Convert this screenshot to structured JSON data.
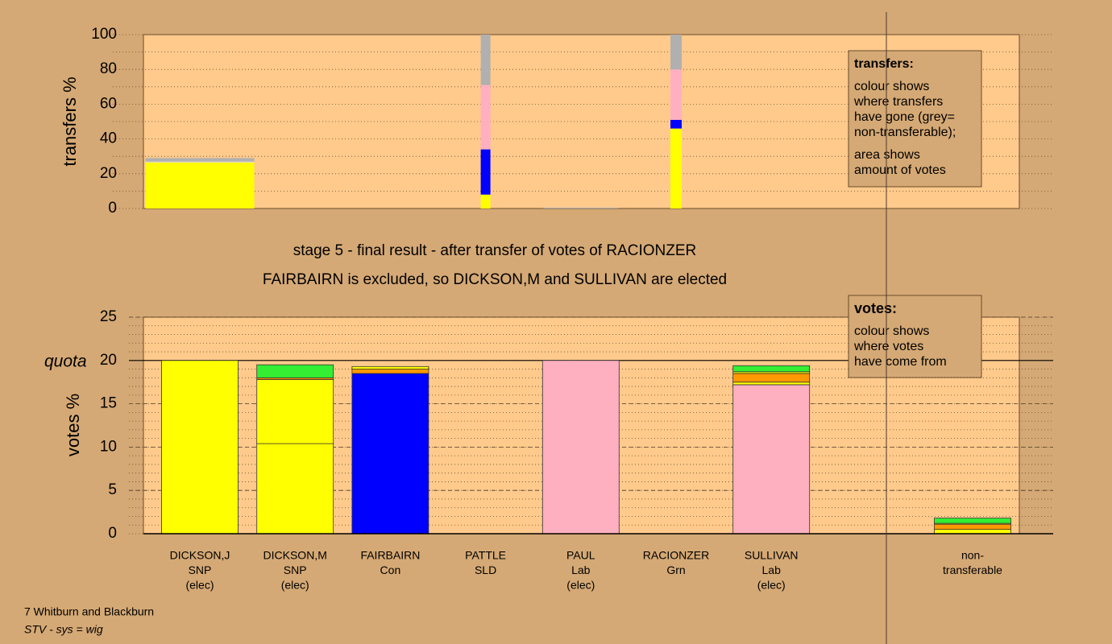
{
  "chart_data": [
    {
      "type": "bar",
      "stacked": true,
      "ylabel": "transfers %",
      "ylim": [
        0,
        100
      ],
      "yticks": [
        0,
        20,
        40,
        60,
        80,
        100
      ],
      "minor_yticks": [
        0,
        10,
        20,
        30,
        40,
        50,
        60,
        70,
        80,
        90,
        100
      ],
      "bars": [
        {
          "amount": 13.5,
          "segments": [
            {
              "value": 26.5,
              "color": "#ffff00"
            },
            {
              "value": 0.5,
              "color": "#d8d8f0"
            },
            {
              "value": 2,
              "color": "#b0b0b0"
            }
          ]
        },
        null,
        null,
        {
          "amount": 1.2,
          "segments": [
            {
              "value": 8,
              "color": "#ffff00"
            },
            {
              "value": 26,
              "color": "#0000ff"
            },
            {
              "value": 37,
              "color": "#ffb0c0"
            },
            {
              "value": 29,
              "color": "#b0b0b0"
            }
          ]
        },
        {
          "amount": 9.3,
          "segments": [
            {
              "value": 0.5,
              "color": "#b0b0b0"
            }
          ]
        },
        {
          "amount": 1.4,
          "segments": [
            {
              "value": 46,
              "color": "#ffff00"
            },
            {
              "value": 5,
              "color": "#0000ff"
            },
            {
              "value": 29,
              "color": "#ffb0c0"
            },
            {
              "value": 20,
              "color": "#b0b0b0"
            }
          ]
        },
        null,
        null
      ],
      "legend": {
        "title": "transfers:",
        "paragraphs": [
          [
            "colour shows",
            "where transfers",
            "have gone (grey=",
            "non-transferable);"
          ],
          [
            "area shows",
            "amount of votes"
          ]
        ]
      }
    },
    {
      "type": "bar",
      "stacked": true,
      "ylabel": "votes %",
      "ylim": [
        0,
        25
      ],
      "yticks": [
        0,
        5,
        10,
        15,
        20,
        25
      ],
      "minor_yticks": [
        0,
        1,
        2,
        3,
        4,
        5,
        6,
        7,
        8,
        9,
        10,
        11,
        12,
        13,
        14,
        15,
        16,
        17,
        18,
        19,
        20,
        21,
        22,
        23,
        24,
        25
      ],
      "quota": 20,
      "quota_label": "quota",
      "categories": [
        [
          "DICKSON,J",
          "SNP",
          "(elec)"
        ],
        [
          "DICKSON,M",
          "SNP",
          "(elec)"
        ],
        [
          "FAIRBAIRN",
          "Con"
        ],
        [
          "PATTLE",
          "SLD"
        ],
        [
          "PAUL",
          "Lab",
          "(elec)"
        ],
        [
          "RACIONZER",
          "Grn"
        ],
        [
          "SULLIVAN",
          "Lab",
          "(elec)"
        ],
        [
          "non-",
          "transferable"
        ]
      ],
      "bars": [
        {
          "segments": [
            {
              "value": 20,
              "color": "#ffff00"
            }
          ]
        },
        {
          "segments": [
            {
              "value": 10.4,
              "color": "#ffff00"
            },
            {
              "value": 7.4,
              "color": "#ffff00"
            },
            {
              "value": 0.2,
              "color": "#ff9900"
            },
            {
              "value": 1.5,
              "color": "#33ee33"
            }
          ]
        },
        {
          "segments": [
            {
              "value": 18.5,
              "color": "#0000ff"
            },
            {
              "value": 0.5,
              "color": "#ff9900"
            },
            {
              "value": 0.3,
              "color": "#ffff00"
            }
          ]
        },
        {
          "segments": [
            {
              "value": 0,
              "color": "#ff9900"
            }
          ]
        },
        {
          "segments": [
            {
              "value": 20,
              "color": "#ffb0c0"
            }
          ]
        },
        {
          "segments": [
            {
              "value": 0,
              "color": "#33ee33"
            }
          ]
        },
        {
          "segments": [
            {
              "value": 17.2,
              "color": "#ffb0c0"
            },
            {
              "value": 0.3,
              "color": "#ffff00"
            },
            {
              "value": 1,
              "color": "#ff9900"
            },
            {
              "value": 0.2,
              "color": "#ffff00"
            },
            {
              "value": 0.7,
              "color": "#33ee33"
            }
          ]
        },
        {
          "segments": [
            {
              "value": 0.5,
              "color": "#ffff00"
            },
            {
              "value": 0.6,
              "color": "#ff9900"
            },
            {
              "value": 0.1,
              "color": "#ffff00"
            },
            {
              "value": 0.6,
              "color": "#33ee33"
            }
          ]
        }
      ],
      "legend": {
        "title": "votes:",
        "paragraphs": [
          [
            "colour shows",
            "where votes",
            "have come from"
          ]
        ]
      }
    }
  ],
  "headline": [
    "stage 5 - final result - after transfer of votes of RACIONZER",
    "FAIRBAIRN is excluded, so DICKSON,M and SULLIVAN are elected"
  ],
  "footer": [
    "7 Whitburn and Blackburn",
    "STV - sys = wig"
  ]
}
